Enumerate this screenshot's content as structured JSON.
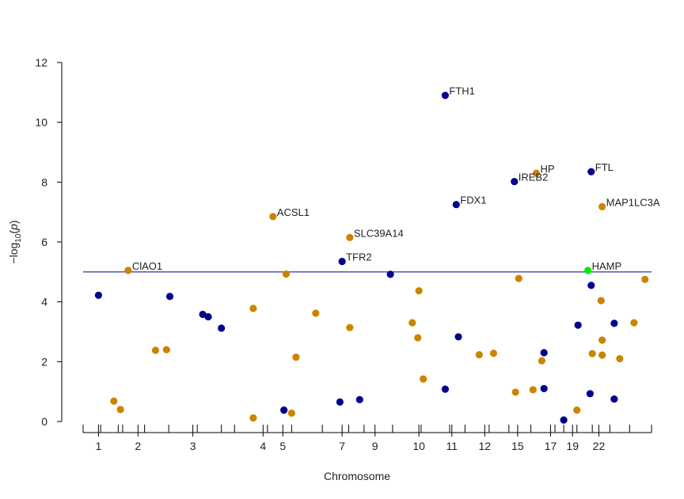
{
  "chart_data": {
    "type": "scatter",
    "xlabel": "Chromosome",
    "ylabel": "−log10(p)",
    "ylabel_parts": {
      "prefix": "−log",
      "sub": "10",
      "mid": "(",
      "italic": "p",
      "suffix": ")"
    },
    "ylim": [
      0,
      12
    ],
    "y_ticks": [
      0,
      2,
      4,
      6,
      8,
      10,
      12
    ],
    "threshold": 5.0,
    "grid": false,
    "legend": "none",
    "colors": {
      "odd": "#00008b",
      "even": "#cc8400",
      "highlight": "#00ee00",
      "threshold": "#00008b"
    },
    "chromosome_ticks": [
      {
        "label": "1",
        "pos": 1
      },
      {
        "label": "2",
        "pos": 2.8
      },
      {
        "label": "3",
        "pos": 5.3
      },
      {
        "label": "4",
        "pos": 8.5
      },
      {
        "label": "5",
        "pos": 9.4
      },
      {
        "label": "7",
        "pos": 12.1
      },
      {
        "label": "9",
        "pos": 13.6
      },
      {
        "label": "10",
        "pos": 15.6
      },
      {
        "label": "11",
        "pos": 17.1
      },
      {
        "label": "12",
        "pos": 18.6
      },
      {
        "label": "15",
        "pos": 20.1
      },
      {
        "label": "17",
        "pos": 21.6
      },
      {
        "label": "19",
        "pos": 22.6
      },
      {
        "label": "22",
        "pos": 23.8
      }
    ],
    "xlim": [
      0.3,
      26.2
    ],
    "minor_ticks": [
      0.3,
      1.1,
      1.9,
      2.1,
      3.1,
      4.2,
      5.5,
      6.6,
      7.2,
      8.7,
      9.8,
      11.2,
      12.4,
      13.1,
      14.4,
      15.7,
      17.0,
      17.7,
      18.8,
      19.7,
      20.7,
      21.8,
      22.2,
      22.8,
      23.5,
      24.3,
      25.2,
      26.2
    ],
    "points": [
      {
        "x": 1.0,
        "y": 4.22,
        "group": "odd"
      },
      {
        "x": 1.7,
        "y": 0.68,
        "group": "even"
      },
      {
        "x": 2.0,
        "y": 0.4,
        "group": "even"
      },
      {
        "x": 2.35,
        "y": 5.05,
        "group": "even",
        "label": "ClAO1"
      },
      {
        "x": 3.6,
        "y": 2.38,
        "group": "even"
      },
      {
        "x": 4.1,
        "y": 2.4,
        "group": "even"
      },
      {
        "x": 4.25,
        "y": 4.18,
        "group": "odd"
      },
      {
        "x": 5.75,
        "y": 3.58,
        "group": "odd"
      },
      {
        "x": 6.0,
        "y": 3.5,
        "group": "odd"
      },
      {
        "x": 6.6,
        "y": 3.12,
        "group": "odd"
      },
      {
        "x": 8.05,
        "y": 3.78,
        "group": "even"
      },
      {
        "x": 8.05,
        "y": 0.12,
        "group": "even"
      },
      {
        "x": 8.95,
        "y": 6.85,
        "group": "even",
        "label": "ACSL1"
      },
      {
        "x": 9.45,
        "y": 0.38,
        "group": "odd"
      },
      {
        "x": 9.55,
        "y": 4.93,
        "group": "even"
      },
      {
        "x": 9.8,
        "y": 0.28,
        "group": "even"
      },
      {
        "x": 10.0,
        "y": 2.15,
        "group": "even"
      },
      {
        "x": 10.9,
        "y": 3.62,
        "group": "even"
      },
      {
        "x": 12.0,
        "y": 0.65,
        "group": "odd"
      },
      {
        "x": 12.1,
        "y": 5.35,
        "group": "odd",
        "label": "TFR2"
      },
      {
        "x": 12.45,
        "y": 6.15,
        "group": "even",
        "label": "SLC39A14"
      },
      {
        "x": 12.45,
        "y": 3.14,
        "group": "even"
      },
      {
        "x": 12.9,
        "y": 0.73,
        "group": "odd"
      },
      {
        "x": 14.3,
        "y": 4.92,
        "group": "odd"
      },
      {
        "x": 15.3,
        "y": 3.3,
        "group": "even"
      },
      {
        "x": 15.55,
        "y": 2.8,
        "group": "even"
      },
      {
        "x": 15.6,
        "y": 4.37,
        "group": "even"
      },
      {
        "x": 15.8,
        "y": 1.42,
        "group": "even"
      },
      {
        "x": 16.8,
        "y": 10.9,
        "group": "odd",
        "label": "FTH1"
      },
      {
        "x": 16.8,
        "y": 1.08,
        "group": "odd"
      },
      {
        "x": 17.3,
        "y": 7.25,
        "group": "odd",
        "label": "FDX1"
      },
      {
        "x": 17.4,
        "y": 2.83,
        "group": "odd"
      },
      {
        "x": 18.35,
        "y": 2.23,
        "group": "even"
      },
      {
        "x": 19.0,
        "y": 2.28,
        "group": "even"
      },
      {
        "x": 19.95,
        "y": 8.02,
        "group": "odd",
        "label": "IREB2"
      },
      {
        "x": 20.0,
        "y": 0.98,
        "group": "even"
      },
      {
        "x": 20.15,
        "y": 4.78,
        "group": "even"
      },
      {
        "x": 20.8,
        "y": 1.06,
        "group": "even"
      },
      {
        "x": 20.95,
        "y": 8.3,
        "group": "even",
        "label": "HP"
      },
      {
        "x": 21.2,
        "y": 2.03,
        "group": "even"
      },
      {
        "x": 21.3,
        "y": 1.1,
        "group": "odd"
      },
      {
        "x": 21.3,
        "y": 2.3,
        "group": "odd"
      },
      {
        "x": 22.2,
        "y": 0.05,
        "group": "odd"
      },
      {
        "x": 22.8,
        "y": 0.38,
        "group": "even"
      },
      {
        "x": 22.85,
        "y": 3.22,
        "group": "odd"
      },
      {
        "x": 23.3,
        "y": 5.05,
        "group": "highlight",
        "label": "HAMP"
      },
      {
        "x": 23.4,
        "y": 0.93,
        "group": "odd"
      },
      {
        "x": 23.45,
        "y": 4.55,
        "group": "odd"
      },
      {
        "x": 23.45,
        "y": 8.35,
        "group": "odd",
        "label": "FTL"
      },
      {
        "x": 23.5,
        "y": 2.27,
        "group": "even"
      },
      {
        "x": 23.9,
        "y": 4.04,
        "group": "even"
      },
      {
        "x": 23.95,
        "y": 2.72,
        "group": "even"
      },
      {
        "x": 23.95,
        "y": 2.22,
        "group": "even"
      },
      {
        "x": 23.95,
        "y": 7.18,
        "group": "even",
        "label": "MAP1LC3A"
      },
      {
        "x": 24.5,
        "y": 3.28,
        "group": "odd"
      },
      {
        "x": 24.5,
        "y": 0.75,
        "group": "odd"
      },
      {
        "x": 24.75,
        "y": 2.1,
        "group": "even"
      },
      {
        "x": 25.4,
        "y": 3.3,
        "group": "even"
      },
      {
        "x": 25.9,
        "y": 4.75,
        "group": "even"
      }
    ]
  }
}
